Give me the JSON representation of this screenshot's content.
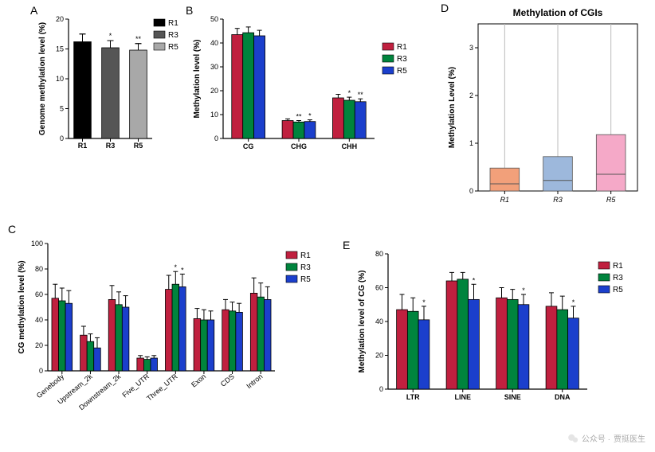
{
  "palette": {
    "R1_black": "#000000",
    "R3_darkgray": "#555555",
    "R5_lightgray": "#a8a8a8",
    "R1_magenta": "#c0203f",
    "R3_green": "#00843d",
    "R5_blue": "#1b3fcc",
    "D_R1": "#f2a07a",
    "D_R3": "#9db8dc",
    "D_R5": "#f5a9c8",
    "axis": "#000000",
    "bg": "#ffffff"
  },
  "panels": {
    "A": {
      "label": "A",
      "type": "bar",
      "y_title": "Genome methylation level (%)",
      "ylim": [
        0,
        20
      ],
      "ytick_step": 5,
      "categories": [
        "R1",
        "R3",
        "R5"
      ],
      "values": [
        16.2,
        15.2,
        14.8
      ],
      "errors": [
        1.3,
        1.2,
        1.1
      ],
      "sig": [
        "",
        "*",
        "**"
      ],
      "colors": [
        "#000000",
        "#555555",
        "#a8a8a8"
      ],
      "legend": [
        {
          "label": "R1",
          "color": "#000000"
        },
        {
          "label": "R3",
          "color": "#555555"
        },
        {
          "label": "R5",
          "color": "#a8a8a8"
        }
      ],
      "bar_width": 0.62
    },
    "B": {
      "label": "B",
      "type": "grouped-bar",
      "y_title": "Methylation level (%)",
      "ylim": [
        0,
        50
      ],
      "ytick_step": 10,
      "groups": [
        "CG",
        "CHG",
        "CHH"
      ],
      "series": [
        {
          "name": "R1",
          "color": "#c0203f",
          "values": [
            43.5,
            7.5,
            17.0
          ],
          "errors": [
            2.6,
            0.7,
            1.5
          ],
          "sig": [
            "",
            "",
            ""
          ]
        },
        {
          "name": "R3",
          "color": "#00843d",
          "values": [
            44.3,
            6.9,
            16.0
          ],
          "errors": [
            2.4,
            0.6,
            1.3
          ],
          "sig": [
            "",
            "**",
            "*"
          ]
        },
        {
          "name": "R5",
          "color": "#1b3fcc",
          "values": [
            43.0,
            7.1,
            15.4
          ],
          "errors": [
            2.3,
            0.7,
            1.2
          ],
          "sig": [
            "",
            "*",
            "**"
          ]
        }
      ],
      "legend": [
        {
          "label": "R1",
          "color": "#c0203f"
        },
        {
          "label": "R3",
          "color": "#00843d"
        },
        {
          "label": "R5",
          "color": "#1b3fcc"
        }
      ],
      "bar_width": 0.22
    },
    "C": {
      "label": "C",
      "type": "grouped-bar",
      "y_title": "CG methylation level (%)",
      "ylim": [
        0,
        100
      ],
      "ytick_step": 20,
      "groups": [
        "Genebody",
        "Upstream_2k",
        "Downstream_2k",
        "Five_UTR",
        "Three_UTR",
        "Exon",
        "CDS",
        "Intron"
      ],
      "series": [
        {
          "name": "R1",
          "color": "#c0203f",
          "values": [
            57,
            28,
            56,
            10,
            64,
            41,
            48,
            61
          ],
          "errors": [
            11,
            7,
            11,
            2,
            11,
            8,
            8,
            12
          ],
          "sig": [
            "",
            "",
            "",
            "",
            "",
            "",
            "",
            ""
          ]
        },
        {
          "name": "R3",
          "color": "#00843d",
          "values": [
            55,
            23,
            52,
            9,
            68,
            40,
            47,
            58
          ],
          "errors": [
            10,
            6,
            10,
            2,
            10,
            8,
            7,
            11
          ],
          "sig": [
            "",
            "",
            "",
            "",
            "*",
            "",
            "",
            ""
          ]
        },
        {
          "name": "R5",
          "color": "#1b3fcc",
          "values": [
            53,
            18,
            50,
            10,
            66,
            40,
            46,
            56
          ],
          "errors": [
            10,
            8,
            9,
            2,
            10,
            7,
            7,
            10
          ],
          "sig": [
            "",
            "",
            "",
            "",
            "*",
            "",
            "",
            ""
          ]
        }
      ],
      "legend": [
        {
          "label": "R1",
          "color": "#c0203f"
        },
        {
          "label": "R3",
          "color": "#00843d"
        },
        {
          "label": "R5",
          "color": "#1b3fcc"
        }
      ],
      "bar_width": 0.24,
      "rotate_xlabels": 40
    },
    "D": {
      "label": "D",
      "type": "boxplot",
      "title": "Methylation of CGIs",
      "y_title": "Methylation Level (%)",
      "ylim": [
        0,
        3.5
      ],
      "yticks": [
        0,
        1,
        2,
        3
      ],
      "categories": [
        "R1",
        "R3",
        "R5"
      ],
      "boxes": [
        {
          "q1": 0.0,
          "median": 0.15,
          "q3": 0.48,
          "whisker_lo": 0.0,
          "whisker_hi": 3.5,
          "color": "#f2a07a"
        },
        {
          "q1": 0.0,
          "median": 0.22,
          "q3": 0.72,
          "whisker_lo": 0.0,
          "whisker_hi": 3.5,
          "color": "#9db8dc"
        },
        {
          "q1": 0.0,
          "median": 0.35,
          "q3": 1.18,
          "whisker_lo": 0.0,
          "whisker_hi": 3.5,
          "color": "#f5a9c8"
        }
      ],
      "box_width": 0.55
    },
    "E": {
      "label": "E",
      "type": "grouped-bar",
      "y_title": "Methylation level of CG (%)",
      "ylim": [
        0,
        80
      ],
      "ytick_step": 20,
      "groups": [
        "LTR",
        "LINE",
        "SINE",
        "DNA"
      ],
      "series": [
        {
          "name": "R1",
          "color": "#c0203f",
          "values": [
            47,
            64,
            54,
            49
          ],
          "errors": [
            9,
            5,
            6,
            8
          ],
          "sig": [
            "",
            "",
            "",
            ""
          ]
        },
        {
          "name": "R3",
          "color": "#00843d",
          "values": [
            46,
            65,
            53,
            47
          ],
          "errors": [
            8,
            4,
            6,
            8
          ],
          "sig": [
            "",
            "",
            "",
            ""
          ]
        },
        {
          "name": "R5",
          "color": "#1b3fcc",
          "values": [
            41,
            53,
            50,
            42
          ],
          "errors": [
            8,
            9,
            6,
            7
          ],
          "sig": [
            "*",
            "*",
            "*",
            "*"
          ]
        }
      ],
      "legend": [
        {
          "label": "R1",
          "color": "#c0203f"
        },
        {
          "label": "R3",
          "color": "#00843d"
        },
        {
          "label": "R5",
          "color": "#1b3fcc"
        }
      ],
      "bar_width": 0.22
    }
  },
  "watermark": {
    "prefix": "公众号 ·",
    "name": "贾挺医生"
  }
}
